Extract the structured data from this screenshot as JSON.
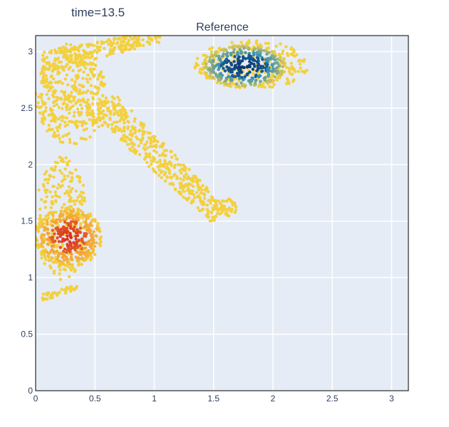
{
  "header": {
    "time_label": "time=13.5"
  },
  "chart_data": {
    "type": "scatter",
    "title": "Reference",
    "xlabel": "",
    "ylabel": "",
    "xlim": [
      0,
      3.14159
    ],
    "ylim": [
      0,
      3.14159
    ],
    "x_ticks": [
      0,
      0.5,
      1,
      1.5,
      2,
      2.5,
      3
    ],
    "x_tick_labels": [
      "0",
      "0.5",
      "1",
      "1.5",
      "2",
      "2.5",
      "3"
    ],
    "y_ticks": [
      0,
      0.5,
      1,
      1.5,
      2,
      2.5,
      3
    ],
    "y_tick_labels": [
      "0",
      "0.5",
      "1",
      "1.5",
      "2",
      "2.5",
      "3"
    ],
    "grid": true,
    "legend": "none",
    "colors": {
      "background": "#E5ECF6",
      "grid": "#FFFFFF",
      "low": "#F4D03F",
      "hot": "#D7261E",
      "hot_mid": "#F39C35",
      "cold": "#08306B",
      "cold_mid": "#2B8CBE"
    },
    "regions": [
      {
        "name": "upper-arm",
        "kind": "band",
        "color": "low",
        "from": [
          0.05,
          2.9
        ],
        "to": [
          1.05,
          3.14
        ],
        "width": 0.18,
        "count": 240
      },
      {
        "name": "upper-left-fan",
        "kind": "blob",
        "color": "low",
        "center": [
          0.3,
          2.62
        ],
        "rx": 0.3,
        "ry": 0.45,
        "count": 420
      },
      {
        "name": "diagonal-tail",
        "kind": "band",
        "color": "low",
        "from": [
          0.55,
          2.55
        ],
        "to": [
          1.55,
          1.55
        ],
        "width": 0.28,
        "count": 430
      },
      {
        "name": "diagonal-tail-tip",
        "kind": "blob",
        "color": "low",
        "center": [
          1.6,
          1.62
        ],
        "rx": 0.1,
        "ry": 0.08,
        "count": 40
      },
      {
        "name": "upper-right-outer",
        "kind": "blob",
        "color": "low",
        "center": [
          1.82,
          2.88
        ],
        "rx": 0.48,
        "ry": 0.22,
        "count": 220
      },
      {
        "name": "upper-right-core",
        "kind": "core",
        "color": "cold",
        "center": [
          1.76,
          2.87
        ],
        "rx": 0.36,
        "ry": 0.19,
        "count": 380
      },
      {
        "name": "left-lobe-outer",
        "kind": "blob",
        "color": "low",
        "center": [
          0.22,
          1.52
        ],
        "rx": 0.22,
        "ry": 0.55,
        "count": 280
      },
      {
        "name": "left-lobe-bottom",
        "kind": "band",
        "color": "low",
        "from": [
          0.05,
          0.82
        ],
        "to": [
          0.35,
          0.92
        ],
        "width": 0.06,
        "count": 50
      },
      {
        "name": "left-core",
        "kind": "core",
        "color": "hot",
        "center": [
          0.28,
          1.36
        ],
        "rx": 0.28,
        "ry": 0.27,
        "count": 380
      }
    ]
  }
}
